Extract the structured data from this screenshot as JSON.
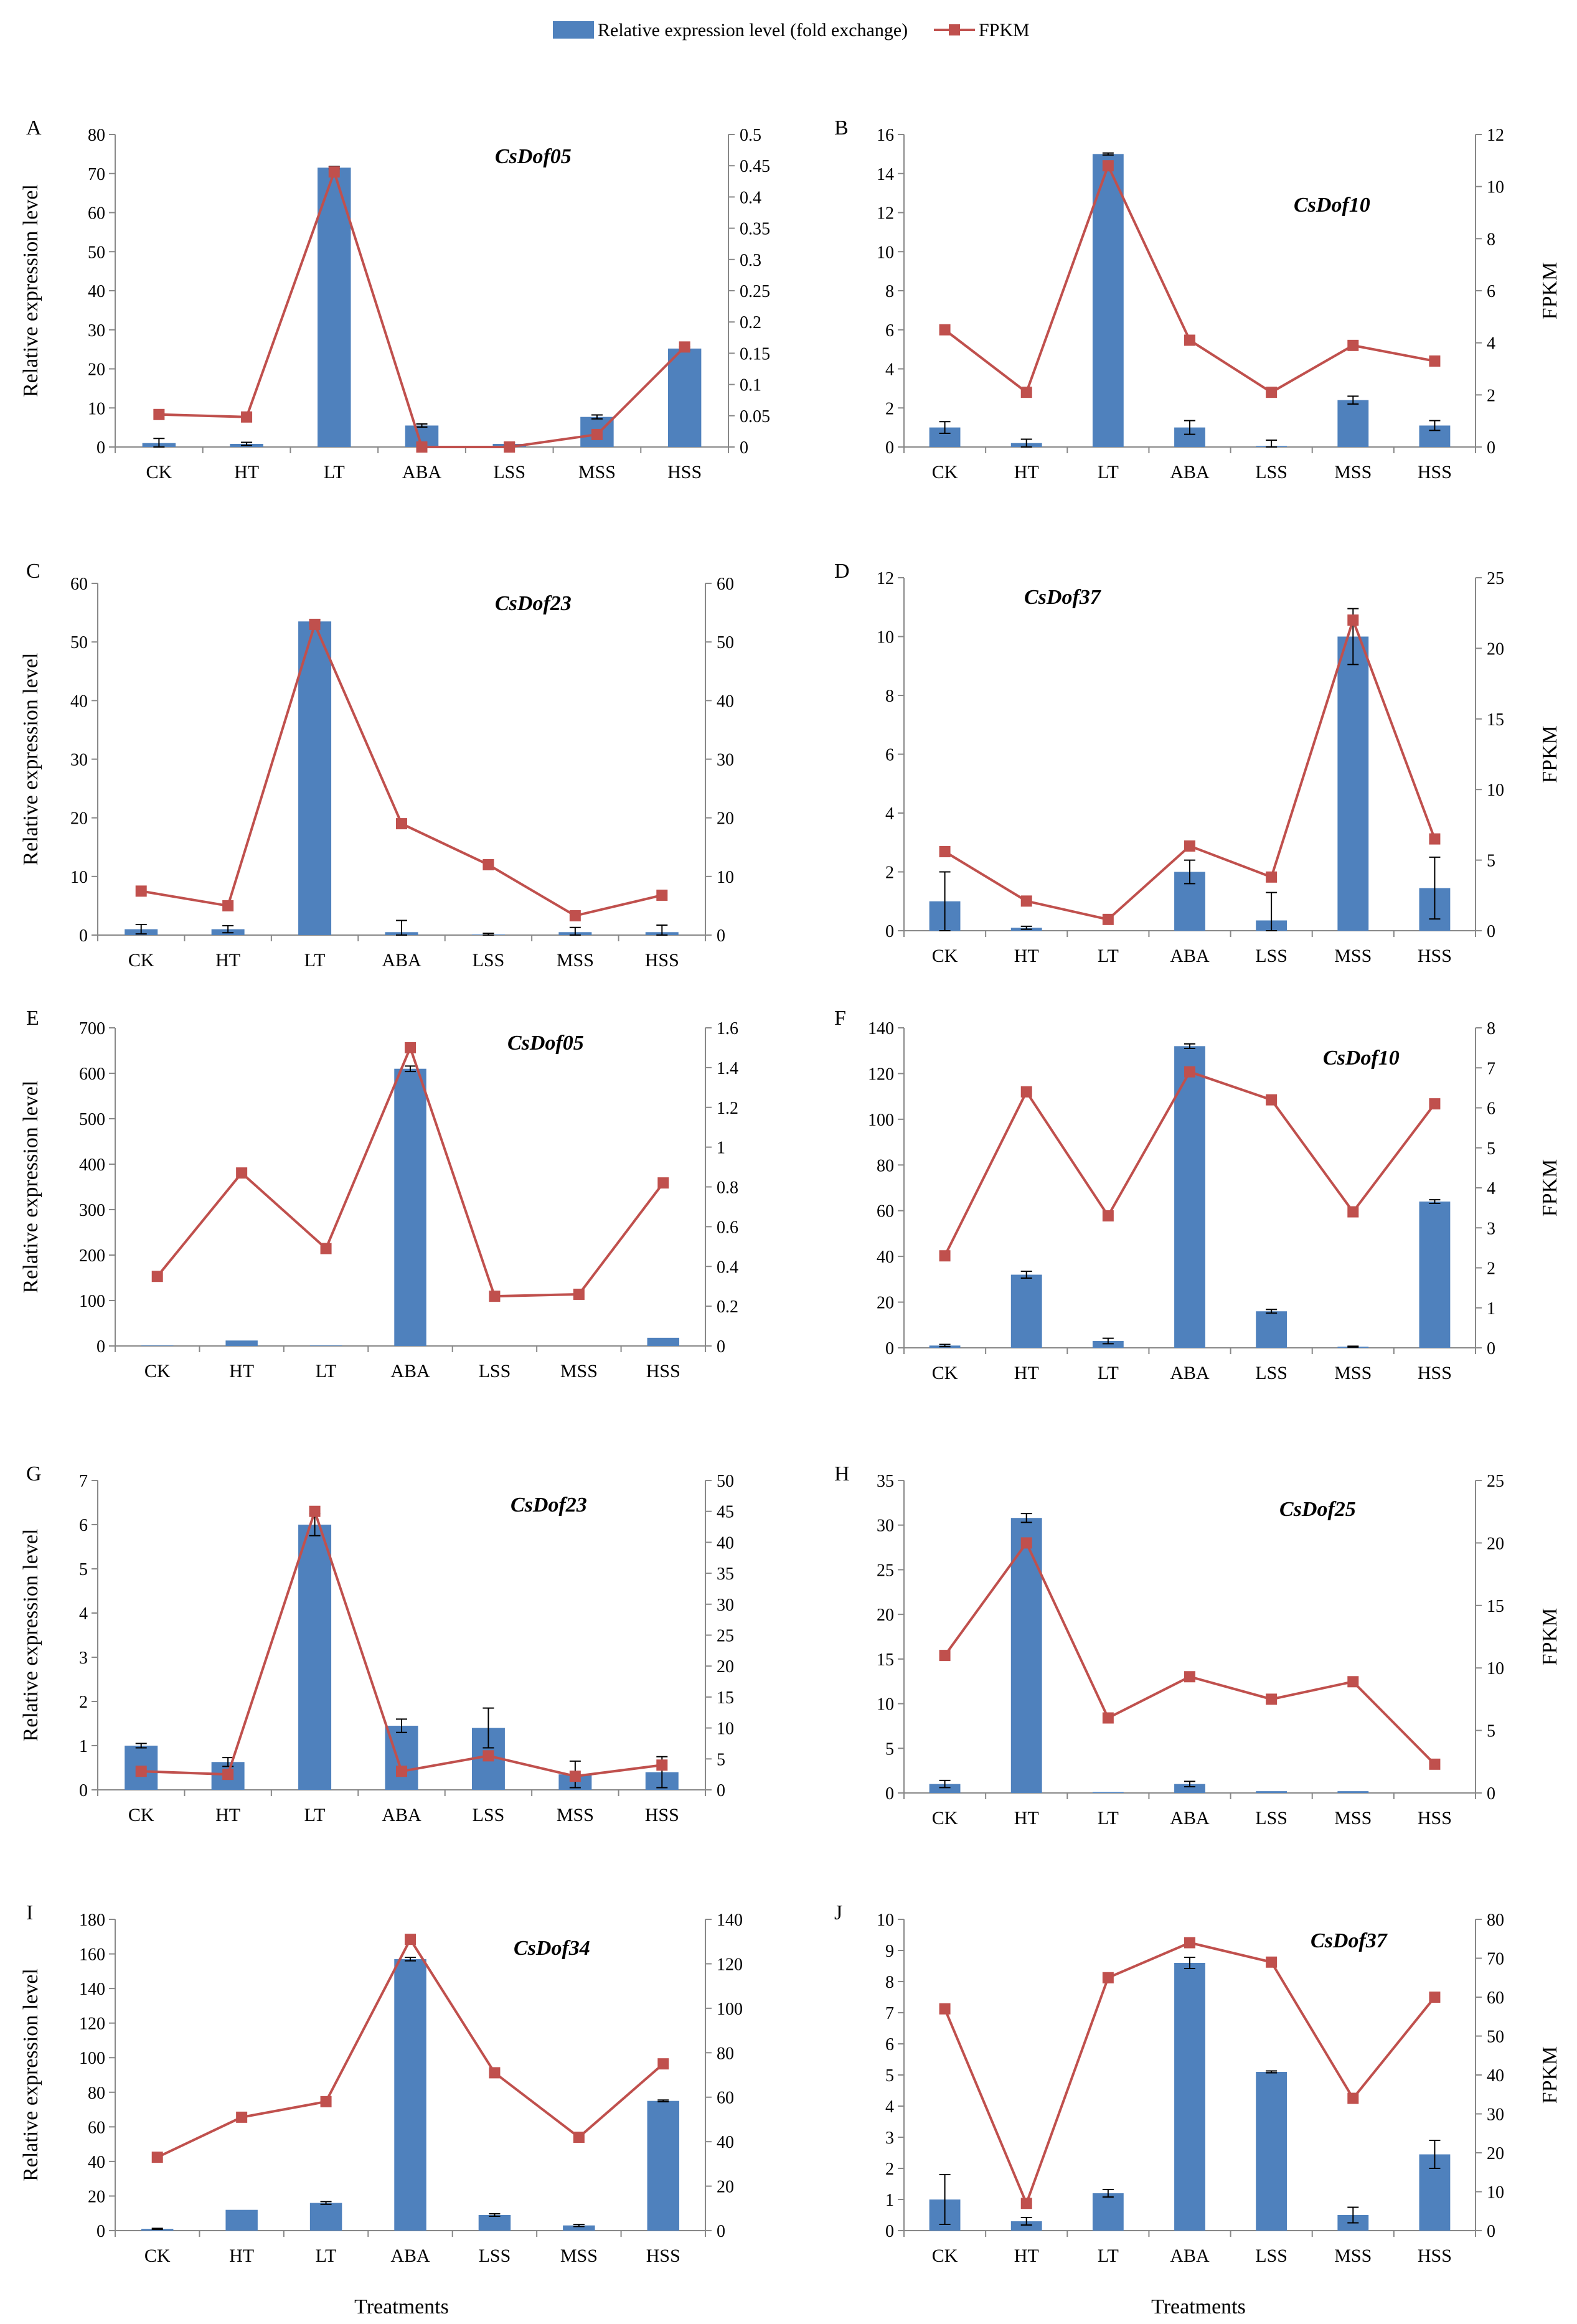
{
  "legend": {
    "bar_label": "Relative expression level (fold exchange)",
    "line_label": "FPKM",
    "bar_color": "#4f81bd",
    "line_color": "#c0504d"
  },
  "x_axis_title": "Treatments",
  "chart_data": [
    {
      "type": "bar",
      "panel": "A",
      "title": "CsDof05",
      "categories": [
        "CK",
        "HT",
        "LT",
        "ABA",
        "LSS",
        "MSS",
        "HSS"
      ],
      "ylabel": "Relative expression level",
      "y2label": "",
      "ylim": [
        0,
        80
      ],
      "yticks": [
        "0",
        "10",
        "20",
        "30",
        "40",
        "50",
        "60",
        "70",
        "80"
      ],
      "y2lim": [
        0,
        0.5
      ],
      "y2ticks": [
        "0",
        "0.05",
        "0.1",
        "0.15",
        "0.2",
        "0.25",
        "0.3",
        "0.35",
        "0.4",
        "0.45",
        "0.5"
      ],
      "series": [
        {
          "name": "Relative expression level (fold exchange)",
          "kind": "bar",
          "axis": "left",
          "values": [
            1,
            0.8,
            71.5,
            5.5,
            0.8,
            7.7,
            25.2
          ],
          "errors": [
            1.2,
            0.4,
            0.3,
            0.4,
            0.3,
            0.5,
            0.4
          ]
        },
        {
          "name": "FPKM",
          "kind": "line",
          "axis": "right",
          "values": [
            0.052,
            0.048,
            0.44,
            0.0,
            0.0,
            0.02,
            0.16
          ]
        }
      ]
    },
    {
      "type": "bar",
      "panel": "B",
      "title": "CsDof10",
      "categories": [
        "CK",
        "HT",
        "LT",
        "ABA",
        "LSS",
        "MSS",
        "HSS"
      ],
      "ylabel": "",
      "y2label": "FPKM",
      "ylim": [
        0,
        16
      ],
      "yticks": [
        "0",
        "2",
        "4",
        "6",
        "8",
        "10",
        "12",
        "14",
        "16"
      ],
      "y2lim": [
        0,
        12
      ],
      "y2ticks": [
        "0",
        "2",
        "4",
        "6",
        "8",
        "10",
        "12"
      ],
      "series": [
        {
          "name": "Relative expression level (fold exchange)",
          "kind": "bar",
          "axis": "left",
          "values": [
            1,
            0.2,
            15,
            1,
            0.05,
            2.4,
            1.1
          ],
          "errors": [
            0.3,
            0.2,
            0.05,
            0.35,
            0.3,
            0.2,
            0.25
          ]
        },
        {
          "name": "FPKM",
          "kind": "line",
          "axis": "right",
          "values": [
            4.5,
            2.1,
            10.8,
            4.1,
            2.1,
            3.9,
            3.3
          ]
        }
      ]
    },
    {
      "type": "bar",
      "panel": "C",
      "title": "CsDof23",
      "categories": [
        "CK",
        "HT",
        "LT",
        "ABA",
        "LSS",
        "MSS",
        "HSS"
      ],
      "ylabel": "Relative expression level",
      "y2label": "",
      "ylim": [
        0,
        60
      ],
      "yticks": [
        "0",
        "10",
        "20",
        "30",
        "40",
        "50",
        "60"
      ],
      "y2lim": [
        0,
        60
      ],
      "y2ticks": [
        "0",
        "10",
        "20",
        "30",
        "40",
        "50",
        "60"
      ],
      "series": [
        {
          "name": "Relative expression level (fold exchange)",
          "kind": "bar",
          "axis": "left",
          "values": [
            1,
            1,
            53.5,
            0.5,
            0.1,
            0.5,
            0.5
          ],
          "errors": [
            0.8,
            0.6,
            0.3,
            2.0,
            0.2,
            0.8,
            1.2
          ]
        },
        {
          "name": "FPKM",
          "kind": "line",
          "axis": "right",
          "values": [
            7.5,
            5,
            53,
            19,
            12,
            3.3,
            6.8
          ]
        }
      ]
    },
    {
      "type": "bar",
      "panel": "D",
      "title": "CsDof37",
      "categories": [
        "CK",
        "HT",
        "LT",
        "ABA",
        "LSS",
        "MSS",
        "HSS"
      ],
      "ylabel": "",
      "y2label": "FPKM",
      "ylim": [
        0,
        12
      ],
      "yticks": [
        "0",
        "2",
        "4",
        "6",
        "8",
        "10",
        "12"
      ],
      "y2lim": [
        0,
        25
      ],
      "y2ticks": [
        "0",
        "5",
        "10",
        "15",
        "20",
        "25"
      ],
      "series": [
        {
          "name": "Relative expression level (fold exchange)",
          "kind": "bar",
          "axis": "left",
          "values": [
            1,
            0.1,
            0,
            2,
            0.35,
            10,
            1.45
          ],
          "errors": [
            1.0,
            0.05,
            0,
            0.4,
            0.95,
            0.95,
            1.05
          ]
        },
        {
          "name": "FPKM",
          "kind": "line",
          "axis": "right",
          "values": [
            5.6,
            2.1,
            0.8,
            6,
            3.8,
            22,
            6.5
          ]
        }
      ]
    },
    {
      "type": "bar",
      "panel": "E",
      "title": "CsDof05",
      "categories": [
        "CK",
        "HT",
        "LT",
        "ABA",
        "LSS",
        "MSS",
        "HSS"
      ],
      "ylabel": "Relative expression level",
      "y2label": "",
      "ylim": [
        0,
        700
      ],
      "yticks": [
        "0",
        "100",
        "200",
        "300",
        "400",
        "500",
        "600",
        "700"
      ],
      "y2lim": [
        0,
        1.6
      ],
      "y2ticks": [
        "0",
        "0.2",
        "0.4",
        "0.6",
        "0.8",
        "1",
        "1.2",
        "1.4",
        "1.6"
      ],
      "series": [
        {
          "name": "Relative expression level (fold exchange)",
          "kind": "bar",
          "axis": "left",
          "values": [
            1,
            12,
            1,
            610,
            0,
            0,
            18
          ],
          "errors": [
            0,
            0,
            0,
            6,
            0,
            0,
            0
          ]
        },
        {
          "name": "FPKM",
          "kind": "line",
          "axis": "right",
          "values": [
            0.35,
            0.87,
            0.49,
            1.5,
            0.25,
            0.26,
            0.82
          ]
        }
      ]
    },
    {
      "type": "bar",
      "panel": "F",
      "title": "CsDof10",
      "categories": [
        "CK",
        "HT",
        "LT",
        "ABA",
        "LSS",
        "MSS",
        "HSS"
      ],
      "ylabel": "",
      "y2label": "FPKM",
      "ylim": [
        0,
        140
      ],
      "yticks": [
        "0",
        "20",
        "40",
        "60",
        "80",
        "100",
        "120",
        "140"
      ],
      "y2lim": [
        0,
        8
      ],
      "y2ticks": [
        "0",
        "1",
        "2",
        "3",
        "4",
        "5",
        "6",
        "7",
        "8"
      ],
      "series": [
        {
          "name": "Relative expression level (fold exchange)",
          "kind": "bar",
          "axis": "left",
          "values": [
            1,
            32,
            3,
            132,
            16,
            0.5,
            64
          ],
          "errors": [
            0.5,
            1.5,
            1.2,
            1.0,
            0.8,
            0.2,
            0.8
          ]
        },
        {
          "name": "FPKM",
          "kind": "line",
          "axis": "right",
          "values": [
            2.3,
            6.4,
            3.3,
            6.9,
            6.2,
            3.4,
            6.1
          ]
        }
      ]
    },
    {
      "type": "bar",
      "panel": "G",
      "title": "CsDof23",
      "categories": [
        "CK",
        "HT",
        "LT",
        "ABA",
        "LSS",
        "MSS",
        "HSS"
      ],
      "ylabel": "Relative expression level",
      "y2label": "",
      "ylim": [
        0,
        7
      ],
      "yticks": [
        "0",
        "1",
        "2",
        "3",
        "4",
        "5",
        "6",
        "7"
      ],
      "y2lim": [
        0,
        50
      ],
      "y2ticks": [
        "0",
        "5",
        "10",
        "15",
        "20",
        "25",
        "30",
        "35",
        "40",
        "45",
        "50"
      ],
      "series": [
        {
          "name": "Relative expression level (fold exchange)",
          "kind": "bar",
          "axis": "left",
          "values": [
            1,
            0.63,
            6,
            1.45,
            1.4,
            0.35,
            0.4
          ],
          "errors": [
            0.05,
            0.1,
            0.25,
            0.15,
            0.45,
            0.3,
            0.35
          ]
        },
        {
          "name": "FPKM",
          "kind": "line",
          "axis": "right",
          "values": [
            3,
            2.5,
            45,
            3,
            5.5,
            2.2,
            4
          ]
        }
      ]
    },
    {
      "type": "bar",
      "panel": "H",
      "title": "CsDof25",
      "categories": [
        "CK",
        "HT",
        "LT",
        "ABA",
        "LSS",
        "MSS",
        "HSS"
      ],
      "ylabel": "",
      "y2label": "FPKM",
      "ylim": [
        0,
        35
      ],
      "yticks": [
        "0",
        "5",
        "10",
        "15",
        "20",
        "25",
        "30",
        "35"
      ],
      "y2lim": [
        0,
        25
      ],
      "y2ticks": [
        "0",
        "5",
        "10",
        "15",
        "20",
        "25"
      ],
      "series": [
        {
          "name": "Relative expression level (fold exchange)",
          "kind": "bar",
          "axis": "left",
          "values": [
            1,
            30.8,
            0.1,
            1,
            0.2,
            0.2,
            0
          ],
          "errors": [
            0.4,
            0.5,
            0,
            0.3,
            0,
            0,
            0
          ]
        },
        {
          "name": "FPKM",
          "kind": "line",
          "axis": "right",
          "values": [
            11,
            20,
            6,
            9.3,
            7.5,
            8.9,
            2.3
          ]
        }
      ]
    },
    {
      "type": "bar",
      "panel": "I",
      "title": "CsDof34",
      "categories": [
        "CK",
        "HT",
        "LT",
        "ABA",
        "LSS",
        "MSS",
        "HSS"
      ],
      "ylabel": "Relative expression level",
      "y2label": "",
      "ylim": [
        0,
        180
      ],
      "yticks": [
        "0",
        "20",
        "40",
        "60",
        "80",
        "100",
        "120",
        "140",
        "160",
        "180"
      ],
      "y2lim": [
        0,
        140
      ],
      "y2ticks": [
        "0",
        "20",
        "40",
        "60",
        "80",
        "100",
        "120",
        "140"
      ],
      "series": [
        {
          "name": "Relative expression level (fold exchange)",
          "kind": "bar",
          "axis": "left",
          "values": [
            1,
            12,
            16,
            157,
            9,
            3,
            75
          ],
          "errors": [
            0.3,
            0,
            0.8,
            1,
            0.7,
            0.6,
            0.5
          ]
        },
        {
          "name": "FPKM",
          "kind": "line",
          "axis": "right",
          "values": [
            33,
            51,
            58,
            131,
            71,
            42,
            75
          ]
        }
      ]
    },
    {
      "type": "bar",
      "panel": "J",
      "title": "CsDof37",
      "categories": [
        "CK",
        "HT",
        "LT",
        "ABA",
        "LSS",
        "MSS",
        "HSS"
      ],
      "ylabel": "",
      "y2label": "FPKM",
      "ylim": [
        0,
        10
      ],
      "yticks": [
        "0",
        "1",
        "2",
        "3",
        "4",
        "5",
        "6",
        "7",
        "8",
        "9",
        "10"
      ],
      "y2lim": [
        0,
        80
      ],
      "y2ticks": [
        "0",
        "10",
        "20",
        "30",
        "40",
        "50",
        "60",
        "70",
        "80"
      ],
      "series": [
        {
          "name": "Relative expression level (fold exchange)",
          "kind": "bar",
          "axis": "left",
          "values": [
            1,
            0.3,
            1.2,
            8.6,
            5.1,
            0.5,
            2.45
          ],
          "errors": [
            0.8,
            0.12,
            0.12,
            0.18,
            0.03,
            0.25,
            0.45
          ]
        },
        {
          "name": "FPKM",
          "kind": "line",
          "axis": "right",
          "values": [
            57,
            7,
            65,
            74,
            69,
            34,
            60
          ]
        }
      ]
    }
  ]
}
